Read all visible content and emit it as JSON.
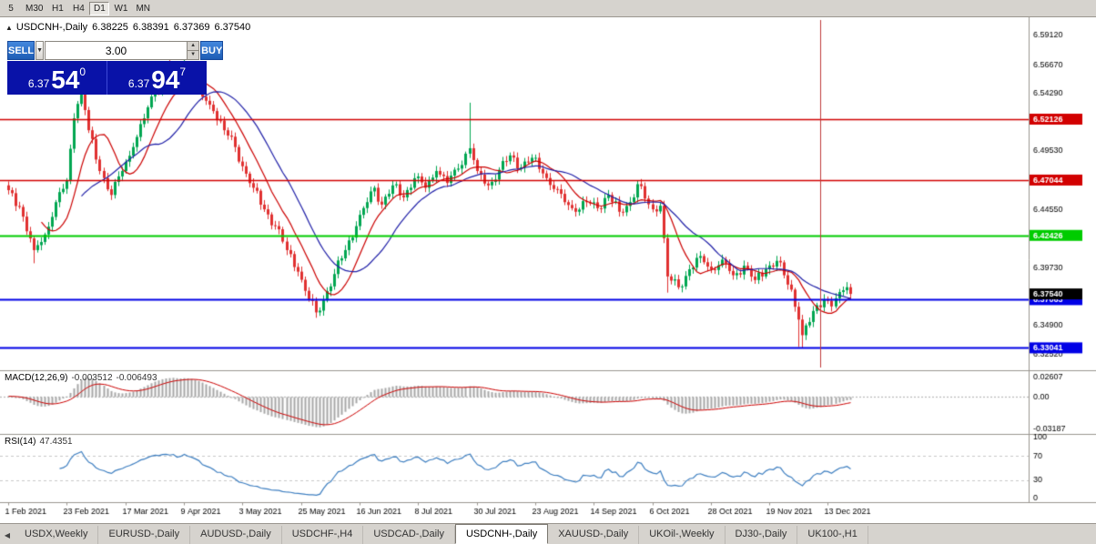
{
  "toolbar": {
    "timeframes": [
      {
        "label": "5",
        "selected": false
      },
      {
        "label": "M30",
        "selected": false
      },
      {
        "label": "H1",
        "selected": false
      },
      {
        "label": "H4",
        "selected": false
      },
      {
        "label": "D1",
        "selected": true
      },
      {
        "label": "W1",
        "selected": false
      },
      {
        "label": "MN",
        "selected": false
      }
    ]
  },
  "chart_header": {
    "symbol": "USDCNH-,Daily",
    "open": "6.38225",
    "high": "6.38391",
    "low": "6.37369",
    "close": "6.37540"
  },
  "trade_panel": {
    "sell_label": "SELL",
    "buy_label": "BUY",
    "volume": "3.00",
    "dropdown_icon": "▼",
    "spin_up_icon": "▲",
    "spin_down_icon": "▼",
    "sell_price": {
      "base": "6.37",
      "big": "54",
      "sup": "0"
    },
    "buy_price": {
      "base": "6.37",
      "big": "94",
      "sup": "7"
    }
  },
  "indicators": {
    "macd": {
      "label": "MACD(12,26,9)",
      "value_main": "-0.003512",
      "value_signal": "-0.006493"
    },
    "rsi": {
      "label": "RSI(14)",
      "value": "47.4351"
    }
  },
  "tabs": {
    "scroll_left_icon": "◀",
    "items": [
      {
        "label": "USDX,Weekly",
        "active": false
      },
      {
        "label": "EURUSD-,Daily",
        "active": false
      },
      {
        "label": "AUDUSD-,Daily",
        "active": false
      },
      {
        "label": "USDCHF-,H4",
        "active": false
      },
      {
        "label": "USDCAD-,Daily",
        "active": false
      },
      {
        "label": "USDCNH-,Daily",
        "active": true
      },
      {
        "label": "XAUUSD-,Daily",
        "active": false
      },
      {
        "label": "UKOil-,Weekly",
        "active": false
      },
      {
        "label": "DJ30-,Daily",
        "active": false
      },
      {
        "label": "UK100-,H1",
        "active": false
      }
    ]
  },
  "chart_data": {
    "type": "candlestick",
    "symbol": "USDCNH",
    "timeframe": "Daily",
    "title": "USDCNH-,Daily",
    "x_range": "1 Feb 2021 - 17 Dec 2021",
    "bar_count": 231,
    "first_bar_x": 9,
    "bar_spacing": 4.02,
    "price_range": {
      "max": 6.604,
      "min": 6.314
    },
    "price_axis_ticks": [
      {
        "v": 6.5912,
        "label": "6.59120"
      },
      {
        "v": 6.5667,
        "label": "6.56670"
      },
      {
        "v": 6.5429,
        "label": "6.54290"
      },
      {
        "v": 6.4953,
        "label": "6.49530"
      },
      {
        "v": 6.4455,
        "label": "6.44550"
      },
      {
        "v": 6.3973,
        "label": "6.39730"
      },
      {
        "v": 6.349,
        "label": "6.34900"
      },
      {
        "v": 6.3252,
        "label": "6.32520"
      }
    ],
    "levels": [
      {
        "price": 6.52126,
        "label": "6.52126",
        "color": "#d20000",
        "width": 1.5
      },
      {
        "price": 6.47044,
        "label": "6.47044",
        "color": "#d20000",
        "width": 1.5
      },
      {
        "price": 6.42426,
        "label": "6.42426",
        "color": "#00cc00",
        "width": 2
      },
      {
        "price": 6.37063,
        "label": "6.37063",
        "color": "#0000e6",
        "width": 2
      },
      {
        "price": 6.33041,
        "label": "6.33041",
        "color": "#0000e6",
        "width": 2
      }
    ],
    "current_price": {
      "price": 6.3754,
      "label": "6.37540",
      "color": "#000000"
    },
    "vertical_line": {
      "index": 222,
      "color": "#c03a3a"
    },
    "date_ticks": [
      {
        "index": 0,
        "label": "1 Feb 2021"
      },
      {
        "index": 16,
        "label": "23 Feb 2021"
      },
      {
        "index": 32,
        "label": "17 Mar 2021"
      },
      {
        "index": 48,
        "label": "9 Apr 2021"
      },
      {
        "index": 64,
        "label": "3 May 2021"
      },
      {
        "index": 80,
        "label": "25 May 2021"
      },
      {
        "index": 96,
        "label": "16 Jun 2021"
      },
      {
        "index": 112,
        "label": "8 Jul 2021"
      },
      {
        "index": 128,
        "label": "30 Jul 2021"
      },
      {
        "index": 144,
        "label": "23 Aug 2021"
      },
      {
        "index": 160,
        "label": "14 Sep 2021"
      },
      {
        "index": 176,
        "label": "6 Oct 2021"
      },
      {
        "index": 192,
        "label": "28 Oct 2021"
      },
      {
        "index": 208,
        "label": "19 Nov 2021"
      },
      {
        "index": 224,
        "label": "13 Dec 2021"
      }
    ],
    "close_anchors": [
      [
        0,
        6.462
      ],
      [
        3,
        6.448
      ],
      [
        7,
        6.412
      ],
      [
        10,
        6.425
      ],
      [
        13,
        6.452
      ],
      [
        16,
        6.47
      ],
      [
        18,
        6.522
      ],
      [
        20,
        6.548
      ],
      [
        22,
        6.512
      ],
      [
        25,
        6.478
      ],
      [
        28,
        6.458
      ],
      [
        31,
        6.478
      ],
      [
        34,
        6.498
      ],
      [
        37,
        6.522
      ],
      [
        40,
        6.545
      ],
      [
        43,
        6.552
      ],
      [
        46,
        6.548
      ],
      [
        48,
        6.562
      ],
      [
        50,
        6.556
      ],
      [
        53,
        6.54
      ],
      [
        56,
        6.528
      ],
      [
        59,
        6.512
      ],
      [
        62,
        6.498
      ],
      [
        64,
        6.482
      ],
      [
        67,
        6.464
      ],
      [
        70,
        6.446
      ],
      [
        73,
        6.432
      ],
      [
        76,
        6.412
      ],
      [
        79,
        6.394
      ],
      [
        81,
        6.378
      ],
      [
        84,
        6.36
      ],
      [
        86,
        6.37
      ],
      [
        89,
        6.392
      ],
      [
        92,
        6.412
      ],
      [
        95,
        6.432
      ],
      [
        98,
        6.452
      ],
      [
        100,
        6.464
      ],
      [
        102,
        6.45
      ],
      [
        105,
        6.466
      ],
      [
        108,
        6.456
      ],
      [
        111,
        6.472
      ],
      [
        114,
        6.464
      ],
      [
        117,
        6.478
      ],
      [
        120,
        6.468
      ],
      [
        123,
        6.48
      ],
      [
        126,
        6.497
      ],
      [
        128,
        6.478
      ],
      [
        131,
        6.466
      ],
      [
        134,
        6.479
      ],
      [
        137,
        6.491
      ],
      [
        140,
        6.481
      ],
      [
        143,
        6.489
      ],
      [
        146,
        6.476
      ],
      [
        149,
        6.463
      ],
      [
        152,
        6.452
      ],
      [
        155,
        6.444
      ],
      [
        158,
        6.452
      ],
      [
        161,
        6.447
      ],
      [
        164,
        6.458
      ],
      [
        167,
        6.444
      ],
      [
        170,
        6.452
      ],
      [
        172,
        6.467
      ],
      [
        174,
        6.455
      ],
      [
        176,
        6.446
      ],
      [
        178,
        6.449
      ],
      [
        180,
        6.39
      ],
      [
        183,
        6.381
      ],
      [
        186,
        6.396
      ],
      [
        189,
        6.407
      ],
      [
        192,
        6.396
      ],
      [
        195,
        6.404
      ],
      [
        198,
        6.391
      ],
      [
        201,
        6.399
      ],
      [
        204,
        6.387
      ],
      [
        207,
        6.396
      ],
      [
        210,
        6.403
      ],
      [
        212,
        6.391
      ],
      [
        214,
        6.379
      ],
      [
        216,
        6.354
      ],
      [
        217,
        6.341
      ],
      [
        219,
        6.352
      ],
      [
        221,
        6.366
      ],
      [
        223,
        6.371
      ],
      [
        225,
        6.365
      ],
      [
        227,
        6.377
      ],
      [
        229,
        6.381
      ],
      [
        230,
        6.3754
      ]
    ],
    "wicks": {
      "7": {
        "l": 6.401
      },
      "20": {
        "h": 6.559
      },
      "44": {
        "h": 6.571
      },
      "48": {
        "h": 6.578
      },
      "84": {
        "l": 6.3555
      },
      "126": {
        "h": 6.535
      },
      "180": {
        "l": 6.3765
      },
      "216": {
        "l": 6.3312
      },
      "217": {
        "l": 6.3304
      }
    },
    "ma": {
      "fast_period": 10,
      "slow_period": 21
    },
    "macd_params": [
      12,
      26,
      9
    ],
    "rsi_period": 14,
    "macd_axis_labels": {
      "top": "0.02607",
      "zero": "0.00",
      "bottom": "-0.03187"
    },
    "rsi_axis_labels": [
      {
        "v": 100,
        "label": "100"
      },
      {
        "v": 70,
        "label": "70"
      },
      {
        "v": 30,
        "label": "30"
      },
      {
        "v": 0,
        "label": "0"
      }
    ],
    "colors": {
      "up": "#00a651",
      "down": "#e03030",
      "ma_fast": "#cc0000",
      "ma_slow": "#2020a8",
      "macd_hist": "#a8a8a8",
      "macd_signal": "#cc0000",
      "rsi_line": "#3e7fc1",
      "axis_text": "#000000",
      "frame": "#9a968f"
    }
  }
}
